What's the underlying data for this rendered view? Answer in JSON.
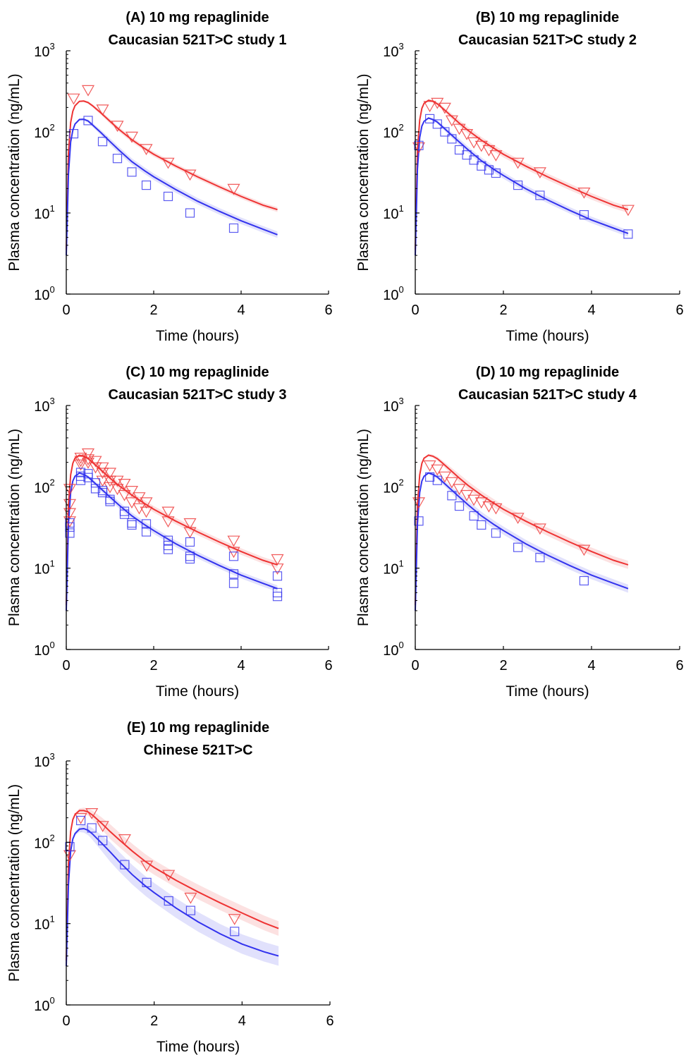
{
  "colors": {
    "variant": "#ee3333",
    "reference": "#3333ee",
    "axis": "#000000"
  },
  "chart_data": [
    {
      "type": "scatter",
      "title": "(A) 10 mg repaglinide",
      "subtitle": "Caucasian 521T>C study 1",
      "xlabel": "Time (hours)",
      "ylabel": "Plasma concentration (ng/mL)",
      "xlim": [
        0,
        6
      ],
      "ylim": [
        1,
        1000
      ],
      "yscale": "log",
      "xticks": [
        "0",
        "2",
        "4",
        "6"
      ],
      "yticks": [
        {
          "base": "10",
          "exp": "0"
        },
        {
          "base": "10",
          "exp": "1"
        },
        {
          "base": "10",
          "exp": "2"
        },
        {
          "base": "10",
          "exp": "3"
        }
      ],
      "series": [
        {
          "marker": "triangle-down",
          "color": "#ee3333",
          "x": [
            0.17,
            0.5,
            0.83,
            1.17,
            1.5,
            1.83,
            2.33,
            2.83,
            3.83
          ],
          "y": [
            260,
            330,
            190,
            120,
            88,
            62,
            42,
            30,
            20
          ]
        },
        {
          "marker": "square",
          "color": "#3333ee",
          "x": [
            0.17,
            0.5,
            0.83,
            1.17,
            1.5,
            1.83,
            2.33,
            2.83,
            3.83
          ],
          "y": [
            95,
            138,
            76,
            47,
            32,
            22,
            16,
            10,
            6.5
          ]
        }
      ],
      "curves": [
        {
          "color": "#ee3333",
          "band": 0.03,
          "x": [
            0,
            0.05,
            0.1,
            0.15,
            0.2,
            0.3,
            0.4,
            0.5,
            0.6,
            0.8,
            1.0,
            1.2,
            1.5,
            1.8,
            2.0,
            2.5,
            3.0,
            3.5,
            4.0,
            4.5,
            4.83
          ],
          "y": [
            3.5,
            55,
            130,
            180,
            210,
            238,
            240,
            230,
            210,
            170,
            135,
            108,
            80,
            62,
            53,
            38,
            28,
            21,
            16,
            12.5,
            11
          ]
        },
        {
          "color": "#3333ee",
          "band": 0.04,
          "x": [
            0,
            0.05,
            0.1,
            0.15,
            0.2,
            0.3,
            0.4,
            0.5,
            0.6,
            0.8,
            1.0,
            1.2,
            1.5,
            1.8,
            2.0,
            2.5,
            3.0,
            3.5,
            4.0,
            4.5,
            4.83
          ],
          "y": [
            3,
            30,
            75,
            105,
            125,
            142,
            143,
            136,
            122,
            97,
            76,
            60,
            43,
            33,
            28,
            19.5,
            14,
            10.5,
            8,
            6.3,
            5.4
          ]
        }
      ]
    },
    {
      "type": "scatter",
      "title": "(B) 10 mg repaglinide",
      "subtitle": "Caucasian 521T>C study 2",
      "xlabel": "Time (hours)",
      "ylabel": "Plasma concentration (ng/mL)",
      "xlim": [
        0,
        6
      ],
      "ylim": [
        1,
        1000
      ],
      "yscale": "log",
      "xticks": [
        "0",
        "2",
        "4",
        "6"
      ],
      "yticks": [
        {
          "base": "10",
          "exp": "0"
        },
        {
          "base": "10",
          "exp": "1"
        },
        {
          "base": "10",
          "exp": "2"
        },
        {
          "base": "10",
          "exp": "3"
        }
      ],
      "series": [
        {
          "marker": "triangle-down",
          "color": "#ee3333",
          "x": [
            0.08,
            0.33,
            0.5,
            0.67,
            0.83,
            1.0,
            1.17,
            1.33,
            1.5,
            1.67,
            1.83,
            2.33,
            2.83,
            3.83,
            4.83
          ],
          "y": [
            65,
            210,
            230,
            200,
            140,
            110,
            95,
            75,
            68,
            60,
            52,
            42,
            32,
            18,
            11
          ]
        },
        {
          "marker": "square",
          "color": "#3333ee",
          "x": [
            0.08,
            0.33,
            0.5,
            0.67,
            0.83,
            1.0,
            1.17,
            1.33,
            1.5,
            1.67,
            1.83,
            2.33,
            2.83,
            3.83,
            4.83
          ],
          "y": [
            68,
            145,
            125,
            100,
            82,
            60,
            52,
            45,
            38,
            34,
            31,
            22,
            16.5,
            9.5,
            5.5
          ]
        }
      ],
      "curves": [
        {
          "color": "#ee3333",
          "band": 0.04,
          "x": [
            0,
            0.05,
            0.1,
            0.15,
            0.2,
            0.3,
            0.4,
            0.5,
            0.6,
            0.8,
            1.0,
            1.2,
            1.5,
            1.8,
            2.0,
            2.5,
            3.0,
            3.5,
            4.0,
            4.5,
            4.83
          ],
          "y": [
            3.5,
            60,
            140,
            195,
            225,
            245,
            238,
            222,
            200,
            160,
            128,
            104,
            79,
            62,
            53,
            38,
            28,
            21,
            16,
            12.5,
            11
          ]
        },
        {
          "color": "#3333ee",
          "band": 0.04,
          "x": [
            0,
            0.05,
            0.1,
            0.15,
            0.2,
            0.3,
            0.4,
            0.5,
            0.6,
            0.8,
            1.0,
            1.2,
            1.5,
            1.8,
            2.0,
            2.5,
            3.0,
            3.5,
            4.0,
            4.5,
            4.83
          ],
          "y": [
            3,
            35,
            85,
            118,
            135,
            148,
            142,
            132,
            118,
            94,
            75,
            60,
            44,
            34,
            29,
            20,
            14.5,
            10.8,
            8.2,
            6.5,
            5.6
          ]
        }
      ]
    },
    {
      "type": "scatter",
      "title": "(C) 10 mg repaglinide",
      "subtitle": "Caucasian 521T>C study 3",
      "xlabel": "Time (hours)",
      "ylabel": "Plasma concentration (ng/mL)",
      "xlim": [
        0,
        6
      ],
      "ylim": [
        1,
        1000
      ],
      "yscale": "log",
      "xticks": [
        "0",
        "2",
        "4",
        "6"
      ],
      "yticks": [
        {
          "base": "10",
          "exp": "0"
        },
        {
          "base": "10",
          "exp": "1"
        },
        {
          "base": "10",
          "exp": "2"
        },
        {
          "base": "10",
          "exp": "3"
        }
      ],
      "series": [
        {
          "marker": "triangle-down",
          "color": "#ee3333",
          "x": [
            0.08,
            0.08,
            0.08,
            0.08,
            0.33,
            0.33,
            0.33,
            0.5,
            0.5,
            0.5,
            0.67,
            0.67,
            0.83,
            0.83,
            0.83,
            1.0,
            1.0,
            1.0,
            1.17,
            1.17,
            1.33,
            1.33,
            1.5,
            1.5,
            1.67,
            1.67,
            1.83,
            1.83,
            2.33,
            2.33,
            2.83,
            2.83,
            3.83,
            3.83,
            4.83,
            4.83
          ],
          "y": [
            95,
            62,
            48,
            38,
            230,
            210,
            190,
            260,
            220,
            200,
            210,
            175,
            175,
            150,
            120,
            150,
            120,
            100,
            120,
            95,
            110,
            80,
            90,
            65,
            75,
            55,
            65,
            50,
            50,
            38,
            36,
            28,
            22,
            16,
            13,
            10
          ]
        },
        {
          "marker": "square",
          "color": "#3333ee",
          "x": [
            0.08,
            0.08,
            0.08,
            0.33,
            0.33,
            0.33,
            0.5,
            0.5,
            0.67,
            0.67,
            0.83,
            0.83,
            1.0,
            1.0,
            1.33,
            1.33,
            1.5,
            1.5,
            1.83,
            1.83,
            2.33,
            2.33,
            2.33,
            2.83,
            2.83,
            2.83,
            3.83,
            3.83,
            3.83,
            4.83,
            4.83,
            4.83
          ],
          "y": [
            36,
            32,
            27,
            150,
            135,
            120,
            145,
            130,
            112,
            95,
            90,
            85,
            70,
            66,
            50,
            46,
            36,
            34,
            35,
            28,
            22,
            19,
            17,
            21,
            14,
            13,
            14,
            8.5,
            6.5,
            5,
            4.5,
            8
          ]
        }
      ],
      "curves": [
        {
          "color": "#ee3333",
          "band": 0.04,
          "x": [
            0,
            0.05,
            0.1,
            0.15,
            0.2,
            0.3,
            0.4,
            0.5,
            0.6,
            0.8,
            1.0,
            1.2,
            1.5,
            1.8,
            2.0,
            2.5,
            3.0,
            3.5,
            4.0,
            4.5,
            4.83
          ],
          "y": [
            3.5,
            60,
            140,
            195,
            225,
            245,
            238,
            222,
            200,
            160,
            128,
            104,
            79,
            62,
            53,
            38,
            28,
            21,
            16,
            12.5,
            11
          ]
        },
        {
          "color": "#3333ee",
          "band": 0.04,
          "x": [
            0,
            0.05,
            0.1,
            0.15,
            0.2,
            0.3,
            0.4,
            0.5,
            0.6,
            0.8,
            1.0,
            1.2,
            1.5,
            1.8,
            2.0,
            2.5,
            3.0,
            3.5,
            4.0,
            4.5,
            4.83
          ],
          "y": [
            3,
            35,
            85,
            118,
            135,
            148,
            142,
            132,
            118,
            94,
            75,
            60,
            44,
            34,
            29,
            20,
            14.5,
            10.8,
            8.2,
            6.5,
            5.6
          ]
        }
      ]
    },
    {
      "type": "scatter",
      "title": "(D) 10 mg repaglinide",
      "subtitle": "Caucasian 521T>C study 4",
      "xlabel": "Time (hours)",
      "ylabel": "Plasma concentration (ng/mL)",
      "xlim": [
        0,
        6
      ],
      "ylim": [
        1,
        1000
      ],
      "yscale": "log",
      "xticks": [
        "0",
        "2",
        "4",
        "6"
      ],
      "yticks": [
        {
          "base": "10",
          "exp": "0"
        },
        {
          "base": "10",
          "exp": "1"
        },
        {
          "base": "10",
          "exp": "2"
        },
        {
          "base": "10",
          "exp": "3"
        }
      ],
      "series": [
        {
          "marker": "triangle-down",
          "color": "#ee3333",
          "x": [
            0.08,
            0.33,
            0.5,
            0.67,
            0.83,
            1.0,
            1.17,
            1.33,
            1.5,
            1.67,
            1.83,
            2.33,
            2.83,
            3.83
          ],
          "y": [
            65,
            185,
            165,
            135,
            115,
            95,
            80,
            70,
            65,
            58,
            55,
            42,
            31,
            17
          ]
        },
        {
          "marker": "square",
          "color": "#3333ee",
          "x": [
            0.08,
            0.33,
            0.5,
            0.83,
            1.0,
            1.33,
            1.5,
            1.83,
            2.33,
            2.83,
            3.83
          ],
          "y": [
            38,
            132,
            120,
            78,
            58,
            44,
            34,
            27,
            18,
            13.5,
            7
          ]
        }
      ],
      "curves": [
        {
          "color": "#ee3333",
          "band": 0.05,
          "x": [
            0,
            0.05,
            0.1,
            0.15,
            0.2,
            0.3,
            0.4,
            0.5,
            0.6,
            0.8,
            1.0,
            1.2,
            1.5,
            1.8,
            2.0,
            2.5,
            3.0,
            3.5,
            4.0,
            4.5,
            4.83
          ],
          "y": [
            3.5,
            60,
            140,
            195,
            225,
            245,
            238,
            222,
            200,
            160,
            128,
            104,
            79,
            62,
            53,
            38,
            28,
            21,
            16,
            12.5,
            11
          ]
        },
        {
          "color": "#3333ee",
          "band": 0.05,
          "x": [
            0,
            0.05,
            0.1,
            0.15,
            0.2,
            0.3,
            0.4,
            0.5,
            0.6,
            0.8,
            1.0,
            1.2,
            1.5,
            1.8,
            2.0,
            2.5,
            3.0,
            3.5,
            4.0,
            4.5,
            4.83
          ],
          "y": [
            3,
            35,
            85,
            118,
            135,
            148,
            142,
            132,
            118,
            94,
            75,
            60,
            44,
            34,
            29,
            20,
            14.5,
            10.8,
            8.2,
            6.5,
            5.6
          ]
        }
      ]
    },
    {
      "type": "scatter",
      "title": "(E) 10 mg repaglinide",
      "subtitle": "Chinese 521T>C",
      "xlabel": "Time (hours)",
      "ylabel": "Plasma concentration (ng/mL)",
      "xlim": [
        0,
        6
      ],
      "ylim": [
        1,
        1000
      ],
      "yscale": "log",
      "xticks": [
        "0",
        "2",
        "4",
        "6"
      ],
      "yticks": [
        {
          "base": "10",
          "exp": "0"
        },
        {
          "base": "10",
          "exp": "1"
        },
        {
          "base": "10",
          "exp": "2"
        },
        {
          "base": "10",
          "exp": "3"
        }
      ],
      "series": [
        {
          "marker": "triangle-down",
          "color": "#ee3333",
          "x": [
            0.08,
            0.33,
            0.58,
            0.83,
            1.33,
            1.83,
            2.33,
            2.83,
            3.83
          ],
          "y": [
            70,
            200,
            230,
            160,
            110,
            52,
            40,
            21,
            11.5
          ]
        },
        {
          "marker": "square",
          "color": "#3333ee",
          "x": [
            0.08,
            0.33,
            0.58,
            0.83,
            1.33,
            1.83,
            2.33,
            2.83,
            3.83
          ],
          "y": [
            88,
            185,
            150,
            105,
            53,
            32,
            19,
            14.5,
            8
          ]
        }
      ],
      "curves": [
        {
          "color": "#ee3333",
          "band": 0.09,
          "x": [
            0,
            0.05,
            0.1,
            0.15,
            0.2,
            0.3,
            0.4,
            0.5,
            0.6,
            0.8,
            1.0,
            1.2,
            1.5,
            1.8,
            2.0,
            2.5,
            3.0,
            3.5,
            4.0,
            4.5,
            4.83
          ],
          "y": [
            3.5,
            55,
            135,
            190,
            220,
            245,
            245,
            235,
            215,
            172,
            135,
            108,
            78,
            58,
            49,
            34,
            24.5,
            18,
            13.5,
            10.2,
            8.7
          ]
        },
        {
          "color": "#3333ee",
          "band": 0.12,
          "x": [
            0,
            0.05,
            0.1,
            0.15,
            0.2,
            0.3,
            0.4,
            0.5,
            0.6,
            0.8,
            1.0,
            1.2,
            1.5,
            1.8,
            2.0,
            2.5,
            3.0,
            3.5,
            4.0,
            4.5,
            4.83
          ],
          "y": [
            3,
            30,
            78,
            110,
            128,
            145,
            147,
            140,
            126,
            98,
            76,
            58,
            40,
            29,
            24,
            15.5,
            10.5,
            7.5,
            5.6,
            4.5,
            4
          ]
        }
      ]
    }
  ]
}
